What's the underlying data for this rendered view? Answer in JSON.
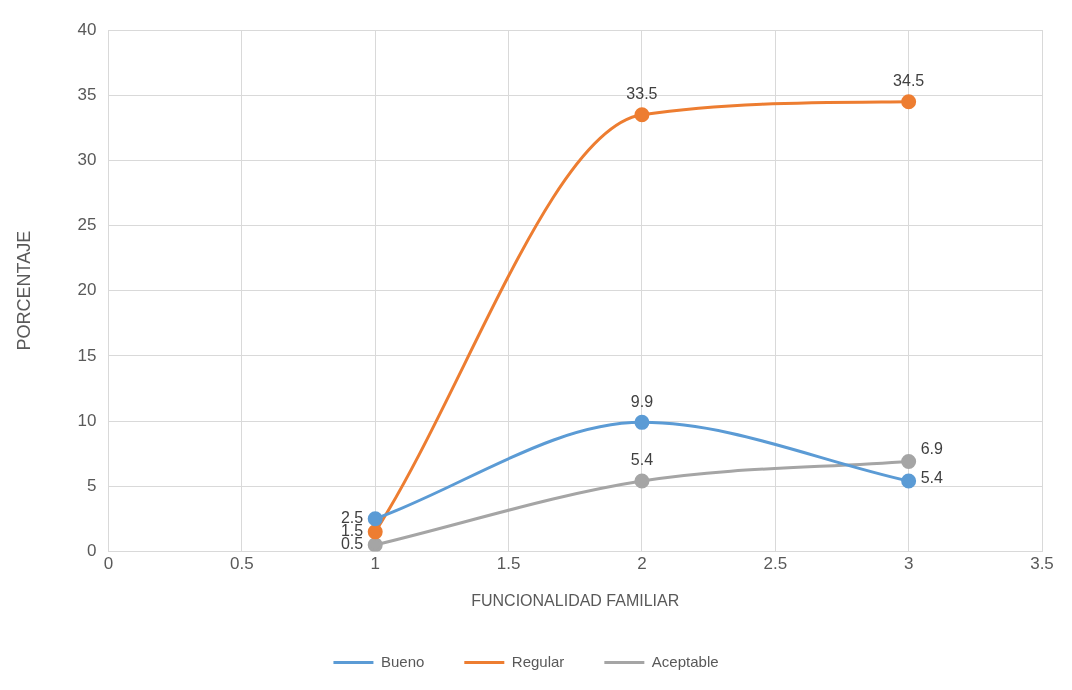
{
  "chart_data": {
    "type": "line",
    "xlabel": "FUNCIONALIDAD FAMILIAR",
    "ylabel": "PORCENTAJE",
    "x": [
      1,
      2,
      3
    ],
    "series": [
      {
        "name": "Bueno",
        "color": "#5b9bd5",
        "values": [
          2.5,
          9.9,
          5.4
        ]
      },
      {
        "name": "Regular",
        "color": "#ed7d31",
        "values": [
          1.5,
          33.5,
          34.5
        ]
      },
      {
        "name": "Aceptable",
        "color": "#a5a5a5",
        "values": [
          0.5,
          5.4,
          6.9
        ]
      }
    ],
    "xlim": [
      0,
      3.5
    ],
    "xticks": [
      0,
      0.5,
      1,
      1.5,
      2,
      2.5,
      3,
      3.5
    ],
    "ylim": [
      0,
      40
    ],
    "yticks": [
      0,
      5,
      10,
      15,
      20,
      25,
      30,
      35,
      40
    ],
    "grid": true,
    "legend": "bottom",
    "marker": "circle",
    "line_style": "solid",
    "data_labels": true
  }
}
